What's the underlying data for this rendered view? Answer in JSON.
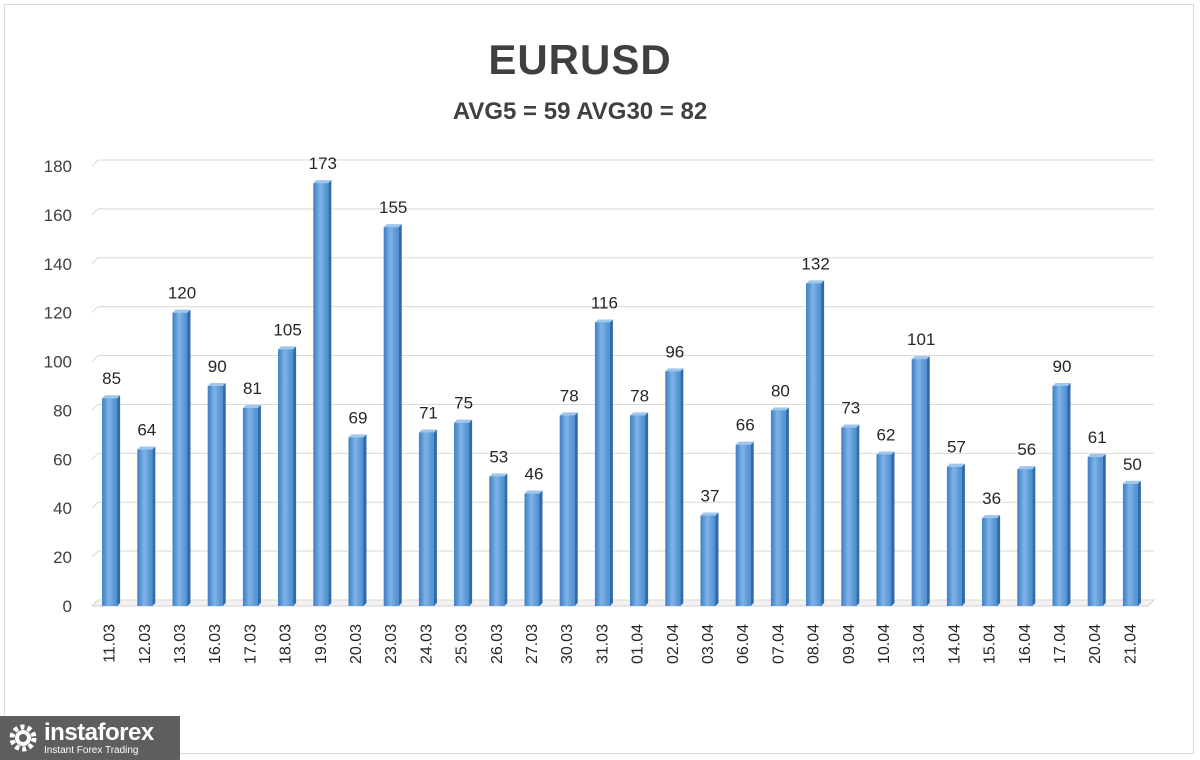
{
  "chart_data": {
    "type": "bar",
    "title": "EURUSD",
    "subtitle": "AVG5 = 59 AVG30 = 82",
    "categories": [
      "11.03",
      "12.03",
      "13.03",
      "16.03",
      "17.03",
      "18.03",
      "19.03",
      "20.03",
      "23.03",
      "24.03",
      "25.03",
      "26.03",
      "27.03",
      "30.03",
      "31.03",
      "01.04",
      "02.04",
      "03.04",
      "06.04",
      "07.04",
      "08.04",
      "09.04",
      "10.04",
      "13.04",
      "14.04",
      "15.04",
      "16.04",
      "17.04",
      "20.04",
      "21.04"
    ],
    "values": [
      85,
      64,
      120,
      90,
      81,
      105,
      173,
      69,
      155,
      71,
      75,
      53,
      46,
      78,
      116,
      78,
      96,
      37,
      66,
      80,
      132,
      73,
      62,
      101,
      57,
      36,
      56,
      90,
      61,
      50
    ],
    "ylim": [
      0,
      180
    ],
    "yticks": [
      0,
      20,
      40,
      60,
      80,
      100,
      120,
      140,
      160,
      180
    ],
    "xlabel": "",
    "ylabel": "",
    "grid": true,
    "legend": "none",
    "bar_color": "#5b9bd5",
    "data_labels": true
  },
  "logo": {
    "name": "instaforex",
    "tagline": "Instant Forex Trading"
  }
}
